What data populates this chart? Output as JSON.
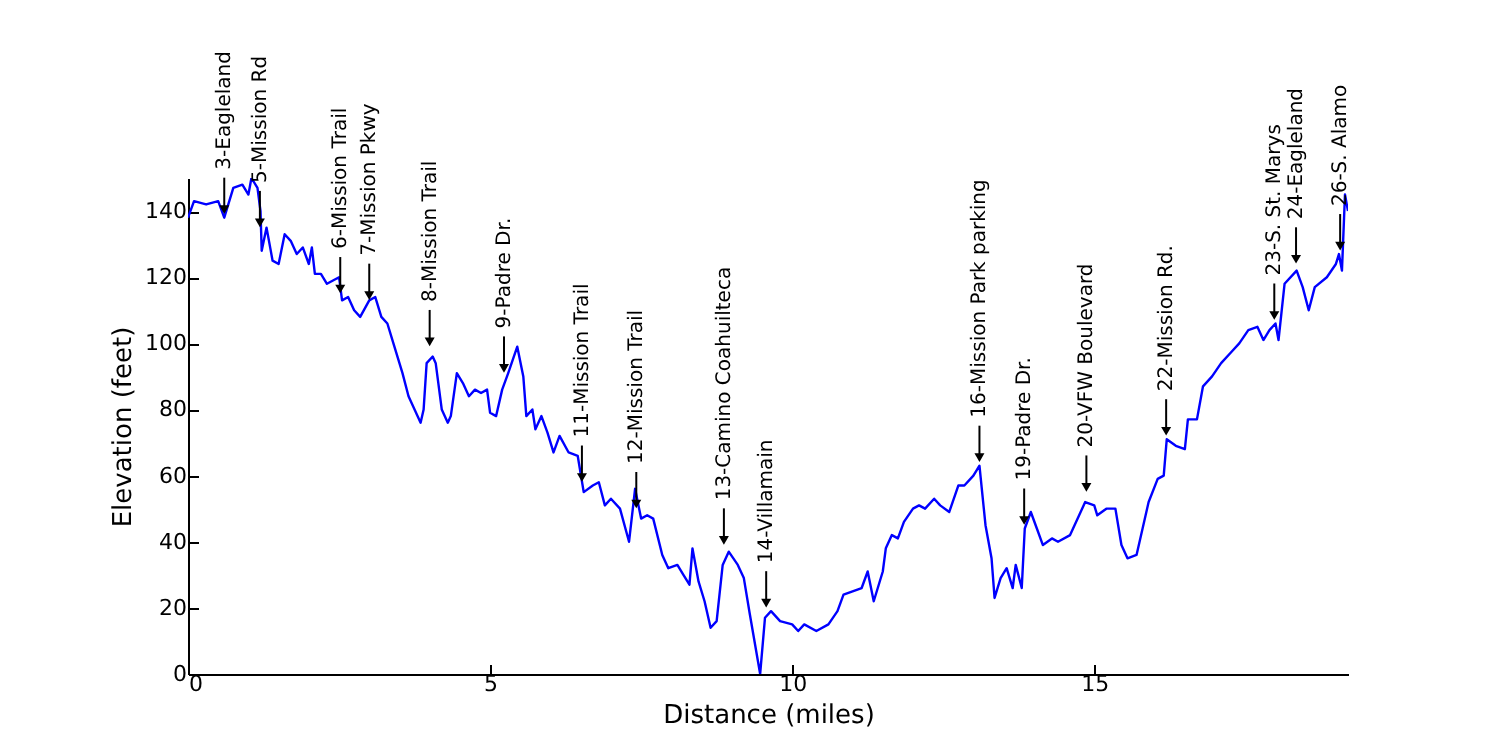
{
  "chart_data": {
    "type": "line",
    "xlabel": "Distance (miles)",
    "ylabel": "Elevation (feet)",
    "xlim": [
      0,
      19.2
    ],
    "ylim": [
      0,
      150
    ],
    "xticks": [
      0,
      5,
      10,
      15
    ],
    "yticks": [
      0,
      20,
      40,
      60,
      80,
      100,
      120,
      140
    ],
    "x": [
      0,
      0.1,
      0.3,
      0.5,
      0.6,
      0.75,
      0.9,
      1.0,
      1.05,
      1.15,
      1.2,
      1.22,
      1.3,
      1.4,
      1.5,
      1.6,
      1.7,
      1.8,
      1.9,
      2.0,
      2.05,
      2.1,
      2.2,
      2.3,
      2.4,
      2.5,
      2.55,
      2.65,
      2.75,
      2.85,
      3.0,
      3.1,
      3.2,
      3.3,
      3.4,
      3.55,
      3.65,
      3.75,
      3.85,
      3.9,
      3.95,
      4.05,
      4.1,
      4.2,
      4.3,
      4.35,
      4.45,
      4.55,
      4.65,
      4.75,
      4.85,
      4.95,
      5.0,
      5.1,
      5.2,
      5.3,
      5.45,
      5.55,
      5.6,
      5.7,
      5.75,
      5.85,
      5.95,
      6.05,
      6.15,
      6.3,
      6.45,
      6.55,
      6.7,
      6.8,
      6.9,
      7.0,
      7.15,
      7.3,
      7.4,
      7.5,
      7.6,
      7.7,
      7.85,
      7.95,
      8.1,
      8.2,
      8.3,
      8.35,
      8.45,
      8.55,
      8.65,
      8.75,
      8.85,
      8.95,
      9.1,
      9.2,
      9.3,
      9.47,
      9.55,
      9.65,
      9.8,
      10.0,
      10.1,
      10.2,
      10.4,
      10.6,
      10.75,
      10.85,
      11.0,
      11.15,
      11.25,
      11.35,
      11.5,
      11.55,
      11.65,
      11.75,
      11.85,
      12.0,
      12.1,
      12.2,
      12.35,
      12.45,
      12.6,
      12.75,
      12.85,
      13.0,
      13.1,
      13.2,
      13.3,
      13.35,
      13.45,
      13.55,
      13.65,
      13.7,
      13.8,
      13.85,
      13.95,
      14.05,
      14.15,
      14.3,
      14.4,
      14.6,
      14.75,
      14.85,
      15.0,
      15.05,
      15.2,
      15.35,
      15.45,
      15.55,
      15.7,
      15.8,
      15.9,
      16.05,
      16.15,
      16.2,
      16.35,
      16.5,
      16.55,
      16.7,
      16.8,
      16.95,
      17.1,
      17.25,
      17.4,
      17.55,
      17.7,
      17.8,
      17.9,
      18.0,
      18.05,
      18.15,
      18.35,
      18.45,
      18.55,
      18.65,
      18.85,
      19.0,
      19.05,
      19.1,
      19.15,
      19.2
    ],
    "series": [
      {
        "color": "#0000ff",
        "values": [
          138,
          143,
          142,
          143,
          138,
          147,
          148,
          145,
          150,
          147,
          140,
          128,
          135,
          125,
          124,
          133,
          131,
          127,
          129,
          124,
          129,
          121,
          121,
          118,
          119,
          120,
          113,
          114,
          110,
          108,
          113,
          114,
          108,
          106,
          100,
          91,
          84,
          80,
          76,
          80,
          94,
          96,
          94,
          80,
          76,
          78,
          91,
          88,
          84,
          86,
          85,
          86,
          79,
          78,
          86,
          91,
          99,
          90,
          78,
          80,
          74,
          78,
          73,
          67,
          72,
          67,
          66,
          55,
          57,
          58,
          51,
          53,
          50,
          40,
          56,
          47,
          48,
          47,
          36,
          32,
          33,
          30,
          27,
          38,
          28,
          22,
          14,
          16,
          33,
          37,
          33,
          29,
          18,
          0,
          17,
          19,
          16,
          15,
          13,
          15,
          13,
          15,
          19,
          24,
          25,
          26,
          31,
          22,
          31,
          38,
          42,
          41,
          46,
          50,
          51,
          50,
          53,
          51,
          49,
          57,
          57,
          60,
          63,
          45,
          35,
          23,
          29,
          32,
          26,
          33,
          26,
          44,
          49,
          44,
          39,
          41,
          40,
          42,
          48,
          52,
          51,
          48,
          50,
          50,
          39,
          35,
          36,
          44,
          52,
          59,
          60,
          71,
          69,
          68,
          77,
          77,
          87,
          90,
          94,
          97,
          100,
          104,
          105,
          101,
          104,
          106,
          101,
          118,
          122,
          117,
          110,
          117,
          120,
          124,
          127,
          122,
          145,
          140
        ]
      }
    ],
    "annotations": [
      {
        "text": "3-Eagleland",
        "x": 0.6,
        "y": 138
      },
      {
        "text": "5-Mission Rd",
        "x": 1.19,
        "y": 134
      },
      {
        "text": "6-Mission Trail",
        "x": 2.52,
        "y": 114
      },
      {
        "text": "7-Mission Pkwy",
        "x": 3.0,
        "y": 112
      },
      {
        "text": "8-Mission Trail",
        "x": 4.0,
        "y": 98
      },
      {
        "text": "9-Padre Dr.",
        "x": 5.23,
        "y": 90
      },
      {
        "text": "11-Mission Trail",
        "x": 6.52,
        "y": 57
      },
      {
        "text": "12-Mission Trail",
        "x": 7.42,
        "y": 49
      },
      {
        "text": "13-Camino Coahuilteca",
        "x": 8.87,
        "y": 38
      },
      {
        "text": "14-Villamain",
        "x": 9.57,
        "y": 19
      },
      {
        "text": "16-Mission Park parking",
        "x": 13.1,
        "y": 63
      },
      {
        "text": "19-Padre Dr.",
        "x": 13.84,
        "y": 44
      },
      {
        "text": "20-VFW Boulevard",
        "x": 14.87,
        "y": 54
      },
      {
        "text": "22-Mission Rd.",
        "x": 16.19,
        "y": 71
      },
      {
        "text": "23-S. St. Marys",
        "x": 17.98,
        "y": 106
      },
      {
        "text": "24-Eagleland",
        "x": 18.34,
        "y": 123
      },
      {
        "text": "26-S. Alamo",
        "x": 19.07,
        "y": 127
      }
    ]
  }
}
